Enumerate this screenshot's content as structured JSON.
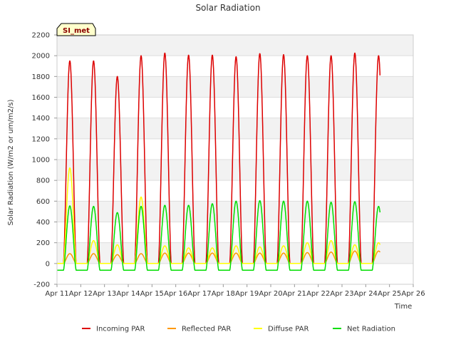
{
  "chart_data": {
    "type": "line",
    "title": "Solar Radiation",
    "xlabel": "Time",
    "ylabel": "Solar Radiation (W/m2 or um/m2/s)",
    "badge": "SI_met",
    "ylim": [
      -200,
      2200
    ],
    "yticks": [
      -200,
      0,
      200,
      400,
      600,
      800,
      1000,
      1200,
      1400,
      1600,
      1800,
      2000,
      2200
    ],
    "xlim_day": [
      11,
      26
    ],
    "xticks": [
      "Apr 11",
      "Apr 12",
      "Apr 13",
      "Apr 14",
      "Apr 15",
      "Apr 16",
      "Apr 17",
      "Apr 18",
      "Apr 19",
      "Apr 20",
      "Apr 21",
      "Apr 22",
      "Apr 23",
      "Apr 24",
      "Apr 25",
      "Apr 26"
    ],
    "grid": "horizontal bands",
    "legend_position": "bottom",
    "days": [
      11.3,
      12.3,
      13.3,
      14.3,
      15.3,
      16.3,
      17.3,
      18.3,
      19.3,
      20.3,
      21.3,
      22.3,
      23.3,
      24.3
    ],
    "series": [
      {
        "name": "Incoming PAR",
        "color": "#dd0000",
        "daily_peak": [
          1950,
          1950,
          1800,
          2000,
          2025,
          2005,
          2005,
          1990,
          2020,
          2010,
          2000,
          2000,
          2025,
          2000
        ],
        "night": 0
      },
      {
        "name": "Reflected PAR",
        "color": "#ff9900",
        "daily_peak": [
          95,
          95,
          85,
          95,
          100,
          100,
          100,
          100,
          100,
          100,
          105,
          110,
          120,
          120
        ],
        "night": 0
      },
      {
        "name": "Diffuse PAR",
        "color": "#ffff00",
        "daily_peak": [
          920,
          220,
          180,
          640,
          170,
          150,
          150,
          170,
          160,
          170,
          200,
          220,
          180,
          200
        ],
        "night": 0
      },
      {
        "name": "Net Radiation",
        "color": "#00dd00",
        "daily_peak": [
          555,
          550,
          490,
          550,
          560,
          560,
          575,
          600,
          605,
          600,
          600,
          590,
          595,
          550
        ],
        "night": -65
      }
    ]
  }
}
